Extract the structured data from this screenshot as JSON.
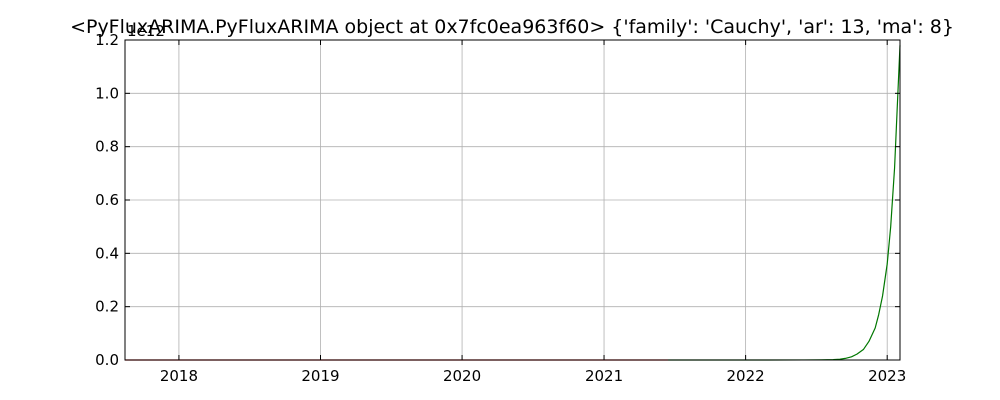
{
  "chart_data": {
    "type": "line",
    "title": "<PyFluxARIMA.PyFluxARIMA object at 0x7fc0ea963f60> {'family': 'Cauchy', 'ar': 13, 'ma': 8}",
    "xlabel": "",
    "ylabel": "",
    "y_offset_label": "1e12",
    "xlim": [
      "2017-08-15",
      "2023-02-03"
    ],
    "ylim": [
      0,
      1200000000000.0
    ],
    "grid": true,
    "x_ticks": [
      {
        "date": "2018-01-01",
        "label": "2018"
      },
      {
        "date": "2019-01-01",
        "label": "2019"
      },
      {
        "date": "2020-01-01",
        "label": "2020"
      },
      {
        "date": "2021-01-01",
        "label": "2021"
      },
      {
        "date": "2022-01-01",
        "label": "2022"
      },
      {
        "date": "2023-01-01",
        "label": "2023"
      }
    ],
    "y_ticks": [
      {
        "value": 0,
        "label": "0.0"
      },
      {
        "value": 200000000000.0,
        "label": "0.2"
      },
      {
        "value": 400000000000.0,
        "label": "0.4"
      },
      {
        "value": 600000000000.0,
        "label": "0.6"
      },
      {
        "value": 800000000000.0,
        "label": "0.8"
      },
      {
        "value": 1000000000000.0,
        "label": "1.0"
      },
      {
        "value": 1200000000000.0,
        "label": "1.2"
      }
    ],
    "series": [
      {
        "color": "#dd0000",
        "x": [
          "2017-08-15",
          "2021-06-15"
        ],
        "y": [
          0,
          0
        ]
      },
      {
        "color": "#007700",
        "x": [
          "2021-06-15",
          "2022-03-01",
          "2022-06-01",
          "2022-07-15",
          "2022-08-15",
          "2022-09-01",
          "2022-09-15",
          "2022-10-01",
          "2022-10-15",
          "2022-11-01",
          "2022-11-15",
          "2022-12-01",
          "2022-12-10",
          "2022-12-20",
          "2023-01-01",
          "2023-01-10",
          "2023-01-20",
          "2023-02-03"
        ],
        "y": [
          0,
          0,
          200000000.0,
          600000000.0,
          1500000000.0,
          3000000000.0,
          6000000000.0,
          12000000000.0,
          22000000000.0,
          40000000000.0,
          70000000000.0,
          120000000000.0,
          170000000000.0,
          240000000000.0,
          360000000000.0,
          500000000000.0,
          720000000000.0,
          1180000000000.0
        ]
      }
    ]
  }
}
